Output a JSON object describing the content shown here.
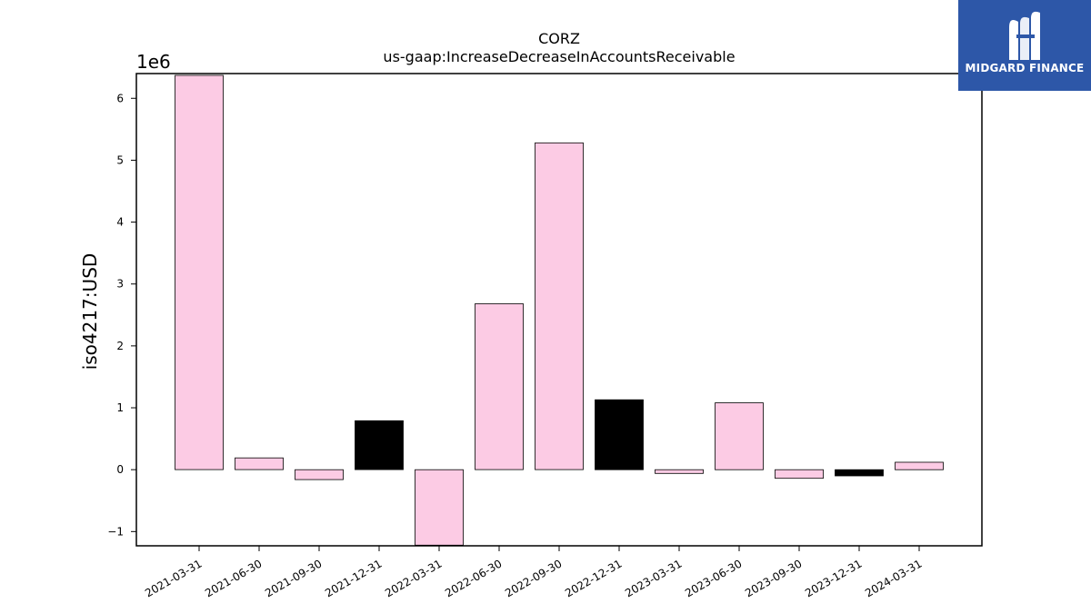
{
  "chart_data": {
    "type": "bar",
    "title": "CORZ",
    "subtitle": "us-gaap:IncreaseDecreaseInAccountsReceivable",
    "xlabel": "",
    "ylabel": "iso4217:USD",
    "y_scale_label": "1e6",
    "ylim": [
      -1.23,
      6.4
    ],
    "yticks": [
      -1,
      0,
      1,
      2,
      3,
      4,
      5,
      6
    ],
    "ytick_labels": [
      "−1",
      "0",
      "1",
      "2",
      "3",
      "4",
      "5",
      "6"
    ],
    "categories": [
      "2021-03-31",
      "2021-06-30",
      "2021-09-30",
      "2021-12-31",
      "2022-03-31",
      "2022-06-30",
      "2022-09-30",
      "2022-12-31",
      "2023-03-31",
      "2023-06-30",
      "2023-09-30",
      "2023-12-31",
      "2024-03-31"
    ],
    "values": [
      6.37,
      0.19,
      -0.16,
      0.79,
      -1.22,
      2.68,
      5.28,
      1.13,
      -0.06,
      1.08,
      -0.14,
      -0.1,
      0.12
    ],
    "bar_colors": [
      "#fccbe4",
      "#fccbe4",
      "#fccbe4",
      "#000000",
      "#fccbe4",
      "#fccbe4",
      "#fccbe4",
      "#000000",
      "#fccbe4",
      "#fccbe4",
      "#fccbe4",
      "#000000",
      "#fccbe4"
    ],
    "grid": false,
    "legend": "none"
  },
  "logo": {
    "text": "MIDGARD FINANCE",
    "color": "#2d57a8"
  }
}
